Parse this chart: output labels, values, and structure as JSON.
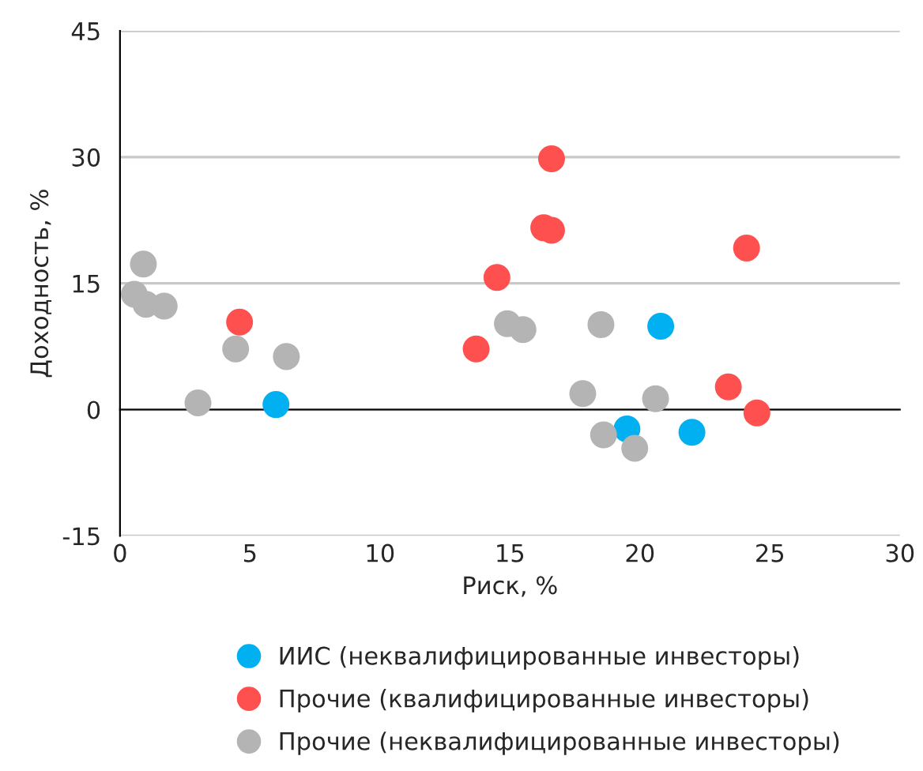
{
  "chart_data": {
    "type": "scatter",
    "xlabel": "Риск, %",
    "ylabel": "Доходность, %",
    "xlim": [
      0,
      30
    ],
    "xticks": [
      0,
      5,
      10,
      15,
      20,
      25,
      30
    ],
    "ylim": [
      -15,
      45
    ],
    "yticks": [
      -15,
      0,
      15,
      30,
      45
    ],
    "grid": "y",
    "legend": "bottom",
    "marker": "circle",
    "series": [
      {
        "name": "ИИС (неквалифицированные инвесторы)",
        "color": "#00b0f0",
        "x": [
          6.0,
          20.8,
          19.5,
          22.0
        ],
        "values": [
          0.6,
          9.9,
          -2.3,
          -2.7
        ]
      },
      {
        "name": "Прочие (квалифицированные инвесторы)",
        "color": "#ff5050",
        "x": [
          4.6,
          13.7,
          14.5,
          16.6,
          16.3,
          16.6,
          24.1,
          23.4,
          24.5
        ],
        "values": [
          10.4,
          7.2,
          15.7,
          29.8,
          21.6,
          21.3,
          19.2,
          2.7,
          -0.4
        ]
      },
      {
        "name": "Прочие (неквалифицированные инвесторы)",
        "color": "#b4b4b4",
        "x": [
          0.9,
          0.55,
          1.0,
          1.7,
          3.0,
          4.45,
          6.4,
          14.9,
          15.5,
          18.5,
          17.8,
          20.6,
          18.6,
          19.8
        ],
        "values": [
          17.3,
          13.7,
          12.5,
          12.3,
          0.8,
          7.2,
          6.3,
          10.2,
          9.5,
          10.1,
          1.9,
          1.3,
          -3.0,
          -4.6
        ]
      }
    ]
  }
}
